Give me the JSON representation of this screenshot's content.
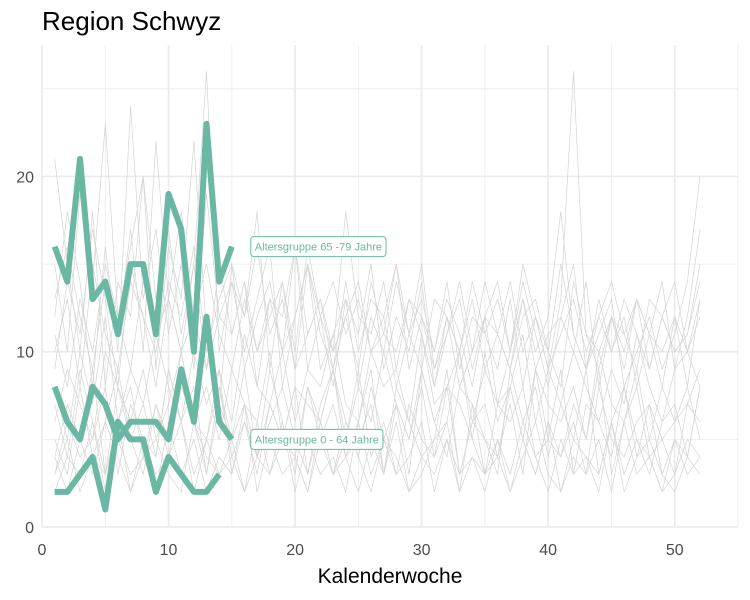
{
  "title": "Region Schwyz",
  "chart_data": {
    "type": "line",
    "title": "Region Schwyz",
    "xlabel": "Kalenderwoche",
    "ylabel": "",
    "xlim": [
      0,
      55
    ],
    "ylim": [
      0,
      27.5
    ],
    "xticks": [
      0,
      10,
      20,
      30,
      40,
      50
    ],
    "yticks": [
      0,
      10,
      20
    ],
    "grid": true,
    "colors": {
      "highlight": "#6ab8a4",
      "background_lines": "#d4d4d4",
      "grid": "#ebebeb"
    },
    "highlight_series": [
      {
        "name": "Altersgruppe 65 -79 Jahre",
        "x": [
          1,
          2,
          3,
          4,
          5,
          6,
          7,
          8,
          9,
          10,
          11,
          12,
          13,
          14,
          15
        ],
        "values": [
          16,
          14,
          21,
          13,
          14,
          11,
          15,
          15,
          11,
          19,
          17,
          10,
          23,
          14,
          16
        ]
      },
      {
        "name": "Altersgruppe 0 - 64 Jahre",
        "x": [
          1,
          2,
          3,
          4,
          5,
          6,
          7,
          8,
          9,
          10,
          11,
          12,
          13,
          14,
          15
        ],
        "values": [
          8,
          6,
          5,
          8,
          7,
          5,
          6,
          6,
          6,
          5,
          9,
          6,
          12,
          6,
          5
        ]
      },
      {
        "name": "",
        "x": [
          1,
          2,
          3,
          4,
          5,
          6,
          7,
          8,
          9,
          10,
          11,
          12,
          13,
          14
        ],
        "values": [
          2,
          2,
          3,
          4,
          1,
          6,
          5,
          5,
          2,
          4,
          3,
          2,
          2,
          3
        ]
      }
    ],
    "background_series": [
      {
        "x_start": 1,
        "values": [
          21,
          15,
          10,
          18,
          8,
          14,
          12,
          20,
          9,
          16,
          13,
          22,
          11,
          7,
          15,
          12,
          18,
          9,
          14,
          10,
          16,
          12,
          8,
          13,
          11,
          15,
          9,
          12,
          10,
          14,
          8,
          11,
          13,
          9,
          12,
          7,
          10,
          14,
          11,
          8,
          12,
          15,
          9,
          11,
          13,
          8,
          10,
          12,
          9,
          11,
          14,
          20
        ]
      },
      {
        "x_start": 1,
        "values": [
          12,
          18,
          14,
          8,
          16,
          10,
          24,
          13,
          17,
          11,
          15,
          9,
          19,
          12,
          14,
          10,
          13,
          16,
          8,
          12,
          15,
          11,
          9,
          14,
          10,
          13,
          12,
          8,
          11,
          15,
          9,
          12,
          10,
          14,
          11,
          9,
          13,
          8,
          12,
          10,
          15,
          11,
          9,
          13,
          10,
          12,
          8,
          11,
          14,
          9,
          12,
          17
        ]
      },
      {
        "x_start": 1,
        "values": [
          15,
          10,
          19,
          14,
          23,
          12,
          16,
          20,
          13,
          17,
          11,
          15,
          26,
          10,
          14,
          12,
          16,
          11,
          13,
          9,
          15,
          12,
          10,
          18,
          12,
          11,
          14,
          9,
          13,
          11,
          8,
          12,
          10,
          13,
          9,
          11,
          14,
          10,
          12,
          9,
          13,
          26,
          11,
          10,
          12,
          9,
          13,
          11,
          10,
          12,
          8,
          13
        ]
      },
      {
        "x_start": 1,
        "values": [
          9,
          14,
          11,
          17,
          13,
          8,
          15,
          12,
          10,
          14,
          12,
          16,
          10,
          13,
          15,
          9,
          12,
          14,
          10,
          16,
          11,
          13,
          9,
          12,
          14,
          10,
          11,
          15,
          9,
          12,
          10,
          13,
          11,
          8,
          12,
          14,
          10,
          13,
          9,
          11,
          12,
          10,
          14,
          8,
          12,
          11,
          13,
          9,
          12,
          10,
          11,
          15
        ]
      },
      {
        "x_start": 1,
        "values": [
          11,
          8,
          13,
          10,
          15,
          12,
          9,
          14,
          11,
          13,
          10,
          12,
          15,
          11,
          9,
          13,
          10,
          12,
          14,
          9,
          11,
          13,
          10,
          12,
          9,
          14,
          11,
          10,
          13,
          12,
          9,
          11,
          14,
          10,
          12,
          11,
          9,
          13,
          10,
          12,
          18,
          11,
          9,
          12,
          10,
          13,
          11,
          9,
          12,
          14,
          10,
          12
        ]
      },
      {
        "x_start": 1,
        "values": [
          13,
          16,
          12,
          9,
          14,
          11,
          17,
          10,
          22,
          13,
          18,
          12,
          9,
          15,
          11,
          14,
          10,
          13,
          12,
          16,
          9,
          12,
          14,
          11,
          13,
          10,
          12,
          15,
          11,
          13,
          10,
          14,
          9,
          12,
          11,
          13,
          10,
          15,
          12,
          9,
          11,
          13,
          10,
          12,
          14,
          11,
          9,
          13,
          12,
          10,
          11,
          14
        ]
      },
      {
        "x_start": 1,
        "values": [
          4,
          7,
          5,
          9,
          3,
          6,
          8,
          4,
          7,
          5,
          10,
          6,
          3,
          8,
          5,
          7,
          4,
          9,
          6,
          3,
          8,
          5,
          7,
          4,
          6,
          9,
          3,
          7,
          5,
          8,
          4,
          6,
          10,
          5,
          3,
          7,
          6,
          8,
          4,
          5,
          9,
          3,
          7,
          6,
          4,
          8,
          5,
          3,
          6,
          7,
          4,
          8
        ]
      },
      {
        "x_start": 1,
        "values": [
          5,
          3,
          8,
          4,
          6,
          9,
          5,
          3,
          7,
          4,
          8,
          6,
          5,
          9,
          3,
          6,
          4,
          7,
          5,
          8,
          3,
          6,
          9,
          4,
          5,
          7,
          3,
          8,
          6,
          4,
          5,
          9,
          3,
          6,
          7,
          4,
          8,
          5,
          3,
          6,
          4,
          7,
          5,
          9,
          3,
          6,
          8,
          4,
          5,
          3,
          7,
          6
        ]
      },
      {
        "x_start": 1,
        "values": [
          3,
          6,
          4,
          5,
          8,
          3,
          7,
          5,
          4,
          9,
          6,
          3,
          5,
          8,
          4,
          6,
          3,
          7,
          5,
          4,
          8,
          6,
          3,
          5,
          9,
          4,
          6,
          3,
          7,
          5,
          4,
          8,
          3,
          6,
          5,
          4,
          7,
          3,
          9,
          5,
          4,
          6,
          3,
          8,
          5,
          4,
          6,
          7,
          3,
          5,
          4,
          8
        ]
      },
      {
        "x_start": 1,
        "values": [
          2,
          4,
          3,
          6,
          2,
          5,
          3,
          4,
          2,
          6,
          3,
          5,
          2,
          4,
          3,
          7,
          2,
          5,
          3,
          4,
          2,
          6,
          3,
          4,
          2,
          5,
          3,
          6,
          2,
          4,
          3,
          5,
          2,
          7,
          3,
          4,
          2,
          5,
          3,
          6,
          2,
          4,
          3,
          5,
          2,
          6,
          3,
          4,
          2,
          5,
          3,
          4
        ]
      },
      {
        "x_start": 1,
        "values": [
          6,
          9,
          7,
          5,
          10,
          8,
          6,
          9,
          5,
          7,
          10,
          6,
          8,
          5,
          9,
          7,
          6,
          10,
          5,
          8,
          7,
          6,
          9,
          5,
          8,
          6,
          10,
          7,
          5,
          9,
          6,
          8,
          7,
          5,
          10,
          6,
          8,
          5,
          9,
          7,
          6,
          8,
          5,
          10,
          7,
          6,
          9,
          5,
          8,
          6,
          7,
          9
        ]
      },
      {
        "x_start": 1,
        "values": [
          4,
          2,
          5,
          3,
          6,
          4,
          2,
          5,
          3,
          4,
          6,
          2,
          5,
          3,
          4,
          2,
          6,
          3,
          5,
          4,
          2,
          5,
          3,
          6,
          4,
          2,
          5,
          3,
          4,
          6,
          2,
          5,
          3,
          4,
          2,
          5,
          3,
          6,
          4,
          2,
          5,
          3,
          4,
          2,
          6,
          3,
          5,
          4,
          2,
          3,
          5,
          4
        ]
      },
      {
        "x_start": 1,
        "values": [
          8,
          5,
          10,
          7,
          12,
          6,
          9,
          7,
          11,
          8,
          6,
          10,
          7,
          9,
          6,
          11,
          8,
          7,
          10,
          6,
          9,
          8,
          11,
          7,
          6,
          10,
          8,
          9,
          6,
          11,
          7,
          8,
          10,
          6,
          9,
          7,
          8,
          11,
          6,
          9,
          7,
          10,
          8,
          6,
          9,
          7,
          11,
          8,
          6,
          9,
          10,
          8
        ]
      },
      {
        "x_start": 1,
        "values": [
          3,
          5,
          2,
          4,
          3,
          6,
          2,
          4,
          5,
          3,
          2,
          6,
          4,
          3,
          5,
          2,
          4,
          3,
          6,
          2,
          5,
          3,
          4,
          2,
          6,
          3,
          5,
          4,
          2,
          3,
          5,
          6,
          2,
          4,
          3,
          5,
          2,
          4,
          6,
          3,
          2,
          5,
          4,
          3,
          6,
          2,
          4,
          5,
          3,
          2,
          4,
          3
        ]
      },
      {
        "x_start": 1,
        "values": [
          10,
          13,
          8,
          15,
          11,
          9,
          14,
          12,
          8,
          13,
          10,
          15,
          9,
          12,
          11,
          14,
          8,
          13,
          10,
          12,
          15,
          9,
          11,
          13,
          8,
          12,
          10,
          14,
          11,
          9,
          13,
          12,
          8,
          10,
          14,
          11,
          9,
          12,
          13,
          10,
          8,
          14,
          11,
          9,
          12,
          10,
          13,
          11,
          8,
          12,
          10,
          13
        ]
      },
      {
        "x_start": 1,
        "values": [
          7,
          4,
          9,
          6,
          3,
          8,
          5,
          7,
          4,
          9,
          6,
          8,
          3,
          7,
          5,
          9,
          4,
          6,
          8,
          5,
          3,
          7,
          9,
          6,
          4,
          8,
          5,
          7,
          3,
          9,
          6,
          4,
          8,
          7,
          5,
          3,
          9,
          6,
          8,
          4,
          7,
          5,
          9,
          3,
          6,
          8,
          4,
          7,
          5,
          6,
          8,
          5
        ]
      }
    ],
    "annotations": [
      {
        "text": "Altersgruppe 65 -79 Jahre",
        "x": 16.5,
        "y": 16
      },
      {
        "text": "Altersgruppe 0 - 64 Jahre",
        "x": 16.5,
        "y": 5
      }
    ]
  }
}
